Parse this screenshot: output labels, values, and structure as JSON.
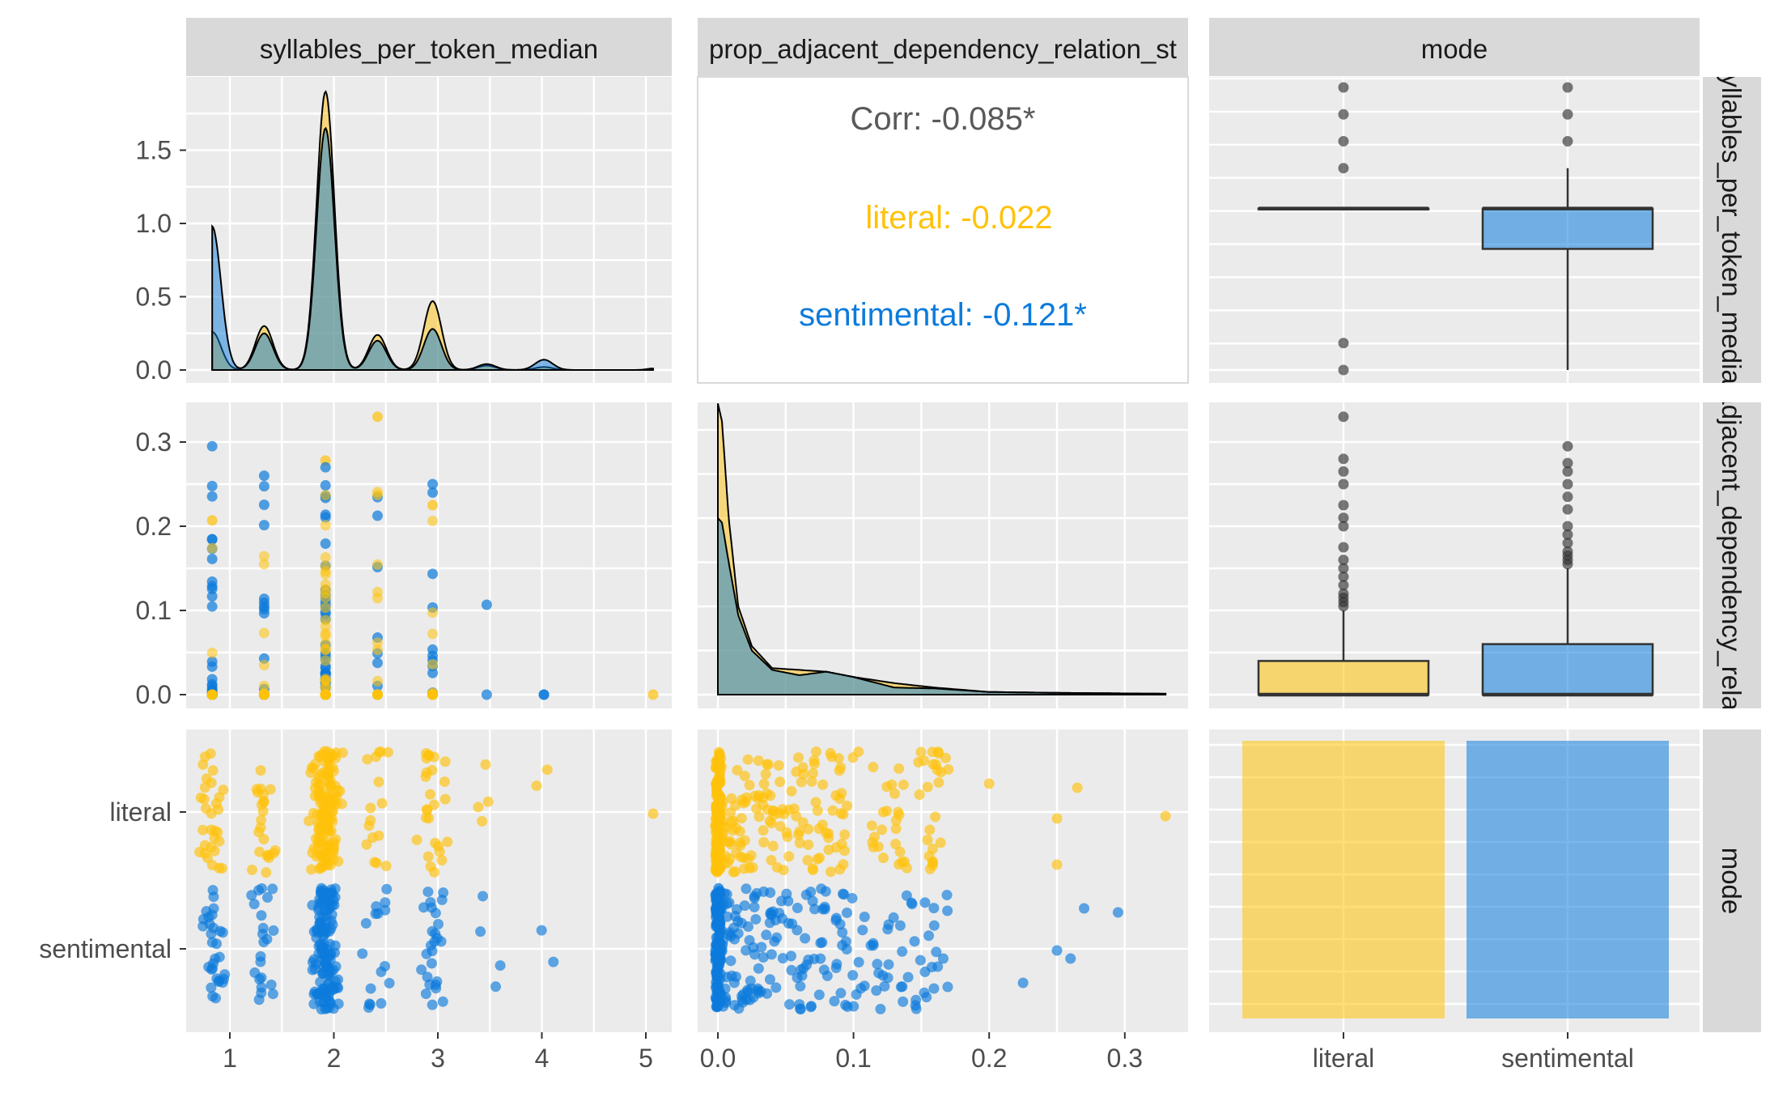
{
  "chart_data": {
    "type": "pairs-matrix",
    "variables": [
      "syllables_per_token_median",
      "prop_adjacent_dependency_relation_st",
      "mode"
    ],
    "strip_labels": {
      "top": [
        "syllables_per_token_median",
        "prop_adjacent_dependency_relation_st",
        "mode"
      ],
      "right": [
        "syllables_per_token_median",
        "prop_adjacent_dependency_relation_st",
        "mode"
      ]
    },
    "groups": [
      "literal",
      "sentimental"
    ],
    "colors": {
      "literal": "#FFC20A",
      "sentimental": "#0C7BDC",
      "overall": "#000000",
      "corr_text": "#595959",
      "panel_bg": "#EBEBEB",
      "strip_bg": "#D9D9D9"
    },
    "axes": {
      "syllables": {
        "range": [
          0.8,
          5.1
        ],
        "ticks": [
          "1",
          "2",
          "3",
          "4",
          "5"
        ],
        "tick_values": [
          1,
          2,
          3,
          4,
          5
        ]
      },
      "prop_adjacent": {
        "range": [
          0,
          0.33
        ],
        "ticks": [
          "0.0",
          "0.1",
          "0.2",
          "0.3"
        ],
        "tick_values": [
          0,
          0.1,
          0.2,
          0.3
        ]
      },
      "density_y": {
        "range": [
          0,
          1.9
        ],
        "ticks": [
          "0.0",
          "0.5",
          "1.0",
          "1.5"
        ],
        "tick_values": [
          0,
          0.5,
          1.0,
          1.5
        ]
      },
      "mode": {
        "categories": [
          "literal",
          "sentimental"
        ]
      }
    },
    "correlation": {
      "overall": "Corr: -0.085*",
      "literal": "literal: -0.022",
      "sentimental": "sentimental: -0.121*"
    },
    "density_syllables": {
      "peaks": [
        {
          "x": 0.83,
          "literal": 0.26,
          "sentimental": 0.98
        },
        {
          "x": 1.33,
          "literal": 0.3,
          "sentimental": 0.25
        },
        {
          "x": 1.92,
          "literal": 1.9,
          "sentimental": 1.65
        },
        {
          "x": 2.42,
          "literal": 0.24,
          "sentimental": 0.2
        },
        {
          "x": 2.95,
          "literal": 0.47,
          "sentimental": 0.28
        },
        {
          "x": 3.47,
          "literal": 0.03,
          "sentimental": 0.04
        },
        {
          "x": 4.02,
          "literal": 0.02,
          "sentimental": 0.07
        },
        {
          "x": 5.07,
          "literal": 0.01,
          "sentimental": 0.0
        }
      ]
    },
    "density_prop_adjacent": {
      "x": [
        0,
        0.003,
        0.008,
        0.015,
        0.025,
        0.04,
        0.06,
        0.08,
        0.1,
        0.13,
        0.16,
        0.2,
        0.25,
        0.33
      ],
      "literal": [
        3.3,
        3.1,
        2.0,
        1.0,
        0.55,
        0.3,
        0.28,
        0.26,
        0.2,
        0.13,
        0.08,
        0.03,
        0.02,
        0.01
      ],
      "sentimental": [
        2.0,
        1.95,
        1.5,
        0.9,
        0.5,
        0.28,
        0.22,
        0.26,
        0.2,
        0.08,
        0.07,
        0.03,
        0.02,
        0.01
      ]
    },
    "boxplots_syllables": {
      "literal": {
        "min": 2,
        "q1": 2,
        "median": 2,
        "q3": 2,
        "max": 2,
        "outliers": [
          0.8,
          1,
          2.75,
          3,
          3.5,
          4,
          5.07
        ]
      },
      "sentimental": {
        "min": 0.8,
        "q1": 1.5,
        "median": 2,
        "q3": 2,
        "max": 2.5,
        "outliers": [
          3,
          3.5,
          4
        ]
      }
    },
    "boxplots_prop_adjacent": {
      "literal": {
        "min": 0,
        "q1": 0,
        "median": 0,
        "q3": 0.04,
        "max": 0.1,
        "outliers": [
          0.105,
          0.11,
          0.115,
          0.12,
          0.13,
          0.14,
          0.15,
          0.16,
          0.175,
          0.2,
          0.21,
          0.225,
          0.25,
          0.265,
          0.28,
          0.33
        ]
      },
      "sentimental": {
        "min": 0,
        "q1": 0,
        "median": 0,
        "q3": 0.06,
        "max": 0.15,
        "outliers": [
          0.155,
          0.16,
          0.165,
          0.17,
          0.18,
          0.19,
          0.2,
          0.22,
          0.235,
          0.25,
          0.265,
          0.275,
          0.295
        ]
      }
    },
    "mode_counts": {
      "literal": 1,
      "sentimental": 1
    }
  }
}
